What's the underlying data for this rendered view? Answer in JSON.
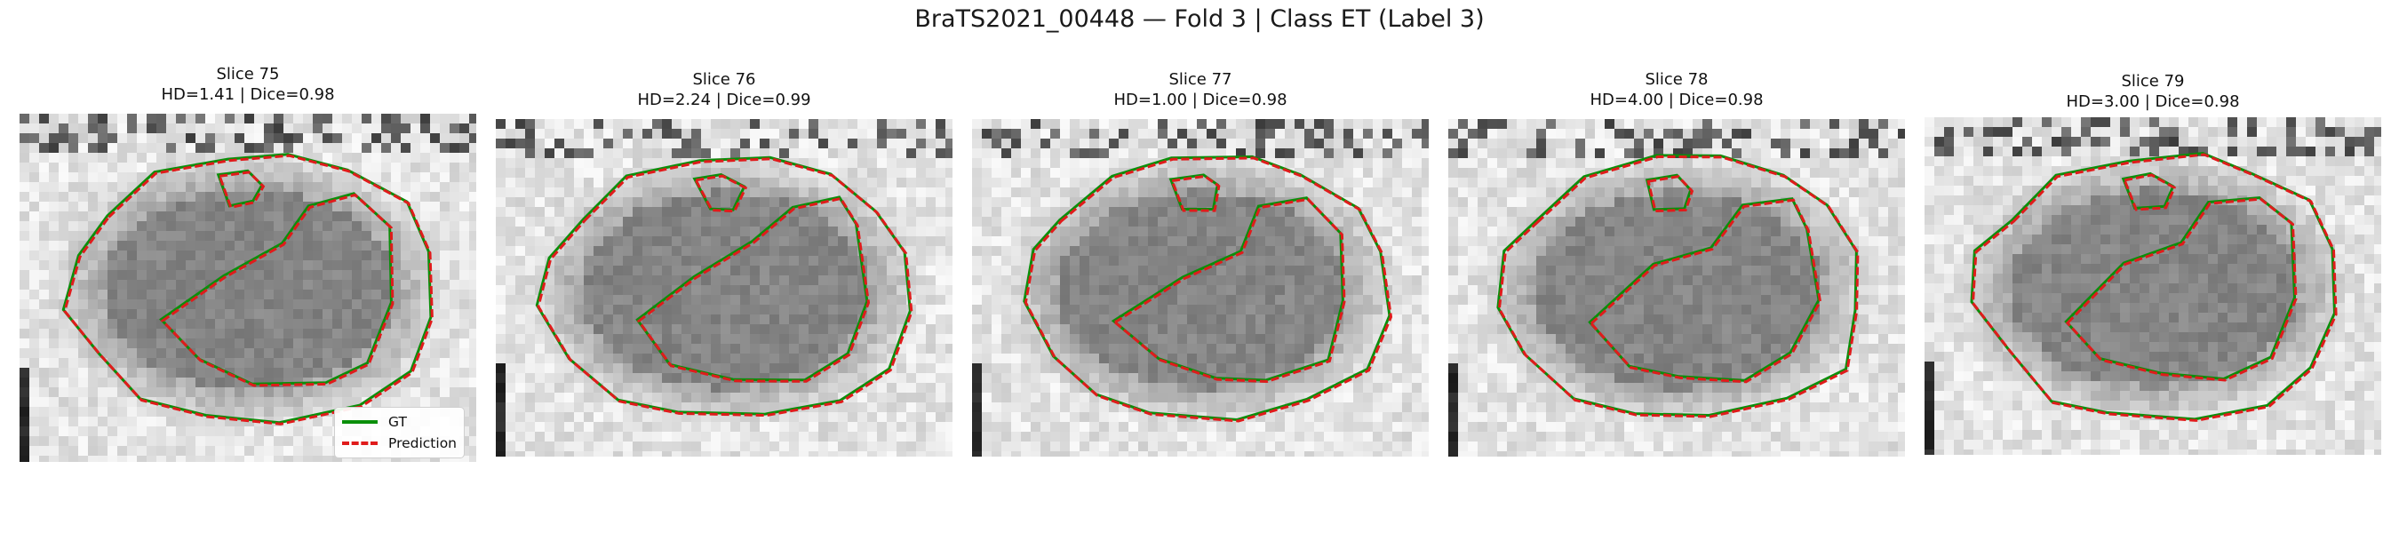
{
  "figure": {
    "title": "BraTS2021_00448 — Fold 3 | Class ET (Label 3)"
  },
  "colors": {
    "gt": "#0a8f0a",
    "prediction": "#e01b1b"
  },
  "legend": {
    "placement": "lower-right of first panel",
    "gt_label": "GT",
    "prediction_label": "Prediction"
  },
  "panels": [
    {
      "slice": "Slice 75",
      "metrics": "HD=1.41 | Dice=0.98"
    },
    {
      "slice": "Slice 76",
      "metrics": "HD=2.24 | Dice=0.99"
    },
    {
      "slice": "Slice 77",
      "metrics": "HD=1.00 | Dice=0.98"
    },
    {
      "slice": "Slice 78",
      "metrics": "HD=4.00 | Dice=0.98"
    },
    {
      "slice": "Slice 79",
      "metrics": "HD=3.00 | Dice=0.98"
    }
  ]
}
